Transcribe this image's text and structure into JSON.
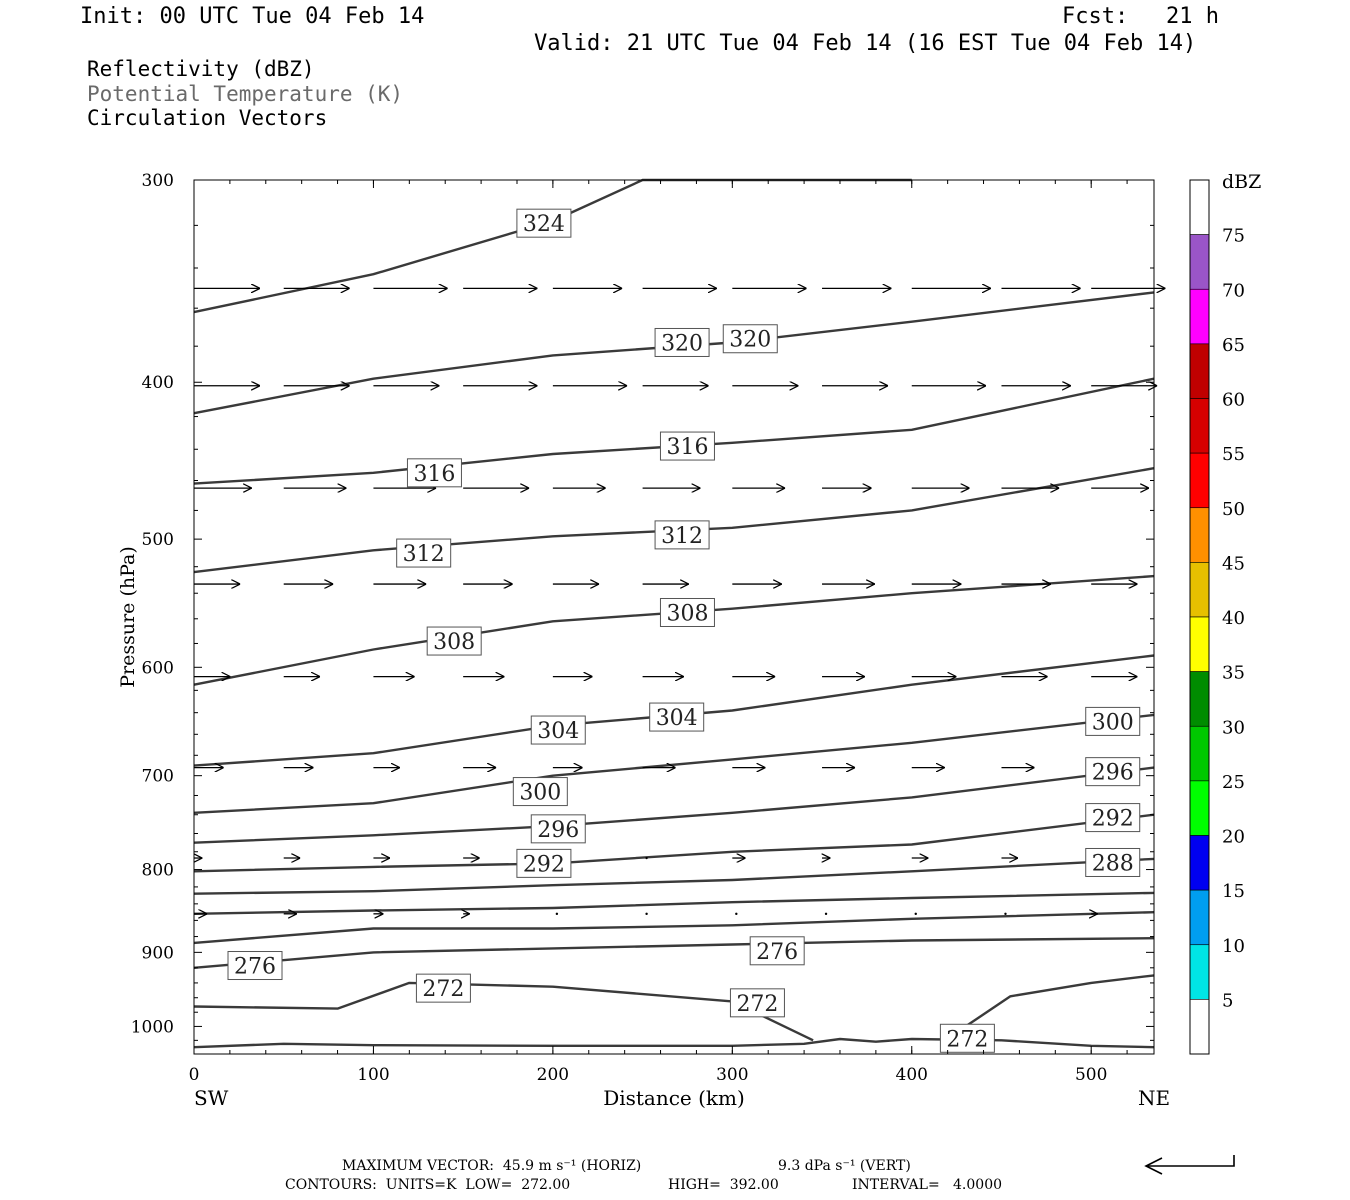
{
  "header": {
    "init": "Init: 00 UTC Tue 04 Feb 14",
    "fcst_label": "Fcst:",
    "fcst_value": "21 h",
    "valid": "Valid: 21 UTC Tue 04 Feb 14 (16 EST Tue 04 Feb 14)"
  },
  "legend": {
    "line1": "Reflectivity (dBZ)",
    "line2": "Potential Temperature (K)",
    "line3": "Circulation Vectors"
  },
  "axes": {
    "xlabel": "Distance (km)",
    "ylabel": "Pressure (hPa)",
    "left_end": "SW",
    "right_end": "NE",
    "x_ticks": [
      0,
      100,
      200,
      300,
      400,
      500
    ],
    "y_ticks": [
      300,
      400,
      500,
      600,
      700,
      800,
      900,
      1000
    ]
  },
  "colorbar": {
    "unit": "dBZ",
    "labels": [
      "5",
      "10",
      "15",
      "20",
      "25",
      "30",
      "35",
      "40",
      "45",
      "50",
      "55",
      "60",
      "65",
      "70",
      "75"
    ],
    "colors": [
      "#ffffff",
      "#00e5e5",
      "#009ef0",
      "#0000f0",
      "#00ff00",
      "#00c800",
      "#008c00",
      "#ffff00",
      "#e6c000",
      "#ff9000",
      "#ff0000",
      "#d60000",
      "#c00000",
      "#ff00ff",
      "#9a55c8",
      "#ffffff"
    ]
  },
  "footer": {
    "max_vector": "MAXIMUM VECTOR:  45.9 m s⁻¹ (HORIZ)",
    "vert": "9.3 dPa s⁻¹ (VERT)",
    "contours": "CONTOURS:  UNITS=K  LOW=  272.00",
    "high": "HIGH=  392.00",
    "interval": "INTERVAL=   4.0000"
  },
  "chart_data": {
    "type": "contour",
    "x_range_km": [
      0,
      535
    ],
    "y_range_hPa": [
      300,
      1040
    ],
    "y_scale": "log-pressure (inverted)",
    "grid": false,
    "contour_interval_K": 4,
    "contours": [
      {
        "level": 324,
        "x": [
          0,
          100,
          200,
          250,
          400
        ],
        "y": [
          362,
          343,
          318,
          300,
          300
        ]
      },
      {
        "level": 320,
        "x": [
          0,
          100,
          200,
          300,
          400,
          535
        ],
        "y": [
          418,
          398,
          385,
          378,
          367,
          352
        ]
      },
      {
        "level": 316,
        "x": [
          0,
          100,
          200,
          300,
          400,
          535
        ],
        "y": [
          462,
          455,
          443,
          436,
          428,
          398
        ]
      },
      {
        "level": 312,
        "x": [
          0,
          100,
          200,
          300,
          400,
          535
        ],
        "y": [
          524,
          508,
          498,
          492,
          480,
          452
        ]
      },
      {
        "level": 308,
        "x": [
          0,
          100,
          200,
          300,
          400,
          535
        ],
        "y": [
          615,
          585,
          562,
          552,
          540,
          527
        ]
      },
      {
        "level": 304,
        "x": [
          0,
          100,
          200,
          300,
          400,
          535
        ],
        "y": [
          690,
          678,
          652,
          638,
          615,
          590
        ]
      },
      {
        "level": 300,
        "x": [
          0,
          100,
          200,
          300,
          400,
          535
        ],
        "y": [
          738,
          728,
          700,
          684,
          668,
          642
        ]
      },
      {
        "level": 296,
        "x": [
          0,
          100,
          200,
          300,
          400,
          535
        ],
        "y": [
          770,
          762,
          752,
          738,
          722,
          692
        ]
      },
      {
        "level": 292,
        "x": [
          0,
          100,
          200,
          300,
          400,
          535
        ],
        "y": [
          802,
          797,
          793,
          780,
          772,
          740
        ]
      },
      {
        "level": 288,
        "x": [
          0,
          100,
          200,
          300,
          400,
          535
        ],
        "y": [
          828,
          825,
          818,
          812,
          802,
          788
        ]
      },
      {
        "level": 284,
        "x": [
          0,
          100,
          200,
          300,
          400,
          535
        ],
        "y": [
          852,
          848,
          845,
          838,
          833,
          827
        ]
      },
      {
        "level": 280,
        "x": [
          0,
          100,
          200,
          300,
          400,
          535
        ],
        "y": [
          888,
          870,
          870,
          866,
          858,
          850
        ]
      },
      {
        "level": 276,
        "x": [
          0,
          100,
          200,
          300,
          400,
          535
        ],
        "y": [
          920,
          900,
          895,
          890,
          885,
          882
        ]
      },
      {
        "level": 272,
        "x": [
          0,
          80,
          120,
          200,
          300,
          345
        ],
        "y": [
          972,
          975,
          940,
          945,
          965,
          1020
        ]
      },
      {
        "level": 272,
        "x": [
          430,
          455,
          500,
          535
        ],
        "y": [
          1000,
          958,
          940,
          930
        ]
      }
    ],
    "contour_labels": [
      {
        "text": "324",
        "x": 195,
        "y": 319
      },
      {
        "text": "320",
        "x": 272,
        "y": 378
      },
      {
        "text": "320",
        "x": 310,
        "y": 376
      },
      {
        "text": "316",
        "x": 134,
        "y": 455
      },
      {
        "text": "316",
        "x": 275,
        "y": 438
      },
      {
        "text": "312",
        "x": 128,
        "y": 510
      },
      {
        "text": "312",
        "x": 272,
        "y": 497
      },
      {
        "text": "308",
        "x": 145,
        "y": 578
      },
      {
        "text": "308",
        "x": 275,
        "y": 555
      },
      {
        "text": "304",
        "x": 203,
        "y": 656
      },
      {
        "text": "304",
        "x": 269,
        "y": 644
      },
      {
        "text": "300",
        "x": 193,
        "y": 716
      },
      {
        "text": "300",
        "x": 512,
        "y": 648
      },
      {
        "text": "296",
        "x": 203,
        "y": 755
      },
      {
        "text": "296",
        "x": 512,
        "y": 696
      },
      {
        "text": "292",
        "x": 195,
        "y": 793
      },
      {
        "text": "292",
        "x": 512,
        "y": 743
      },
      {
        "text": "288",
        "x": 512,
        "y": 792
      },
      {
        "text": "276",
        "x": 34,
        "y": 917
      },
      {
        "text": "276",
        "x": 325,
        "y": 898
      },
      {
        "text": "272",
        "x": 139,
        "y": 947
      },
      {
        "text": "272",
        "x": 314,
        "y": 967
      },
      {
        "text": "272",
        "x": 431,
        "y": 1017
      }
    ],
    "surface": {
      "x": [
        0,
        50,
        100,
        200,
        300,
        340,
        360,
        380,
        400,
        450,
        500,
        535
      ],
      "y": [
        1030,
        1025,
        1027,
        1028,
        1028,
        1025,
        1018,
        1022,
        1018,
        1020,
        1028,
        1030
      ]
    },
    "vectors": {
      "x": [
        0,
        50,
        100,
        150,
        200,
        250,
        300,
        350,
        400,
        450,
        500
      ],
      "rows": [
        {
          "p": 350,
          "u": [
            40,
            40,
            45,
            45,
            42,
            45,
            45,
            42,
            48,
            48,
            45
          ]
        },
        {
          "p": 402,
          "u": [
            40,
            40,
            40,
            45,
            45,
            40,
            40,
            40,
            45,
            42,
            40
          ]
        },
        {
          "p": 465,
          "u": [
            35,
            38,
            38,
            40,
            32,
            35,
            32,
            30,
            35,
            35,
            35
          ]
        },
        {
          "p": 533,
          "u": [
            28,
            30,
            32,
            30,
            28,
            28,
            30,
            32,
            30,
            30,
            28
          ]
        },
        {
          "p": 608,
          "u": [
            22,
            22,
            25,
            25,
            24,
            25,
            26,
            26,
            27,
            28,
            28
          ]
        },
        {
          "p": 692,
          "u": [
            18,
            18,
            16,
            20,
            18,
            20,
            20,
            20,
            20,
            20,
            18
          ]
        },
        {
          "p": 787,
          "u": [
            5,
            10,
            10,
            10,
            0,
            0,
            8,
            5,
            10,
            10,
            0
          ]
        },
        {
          "p": 852,
          "u": [
            8,
            8,
            6,
            4,
            0,
            0,
            0,
            0,
            0,
            0,
            4
          ]
        }
      ],
      "max_horiz_m_s": 45.9,
      "max_vert_dPa_s": 9.3
    }
  }
}
